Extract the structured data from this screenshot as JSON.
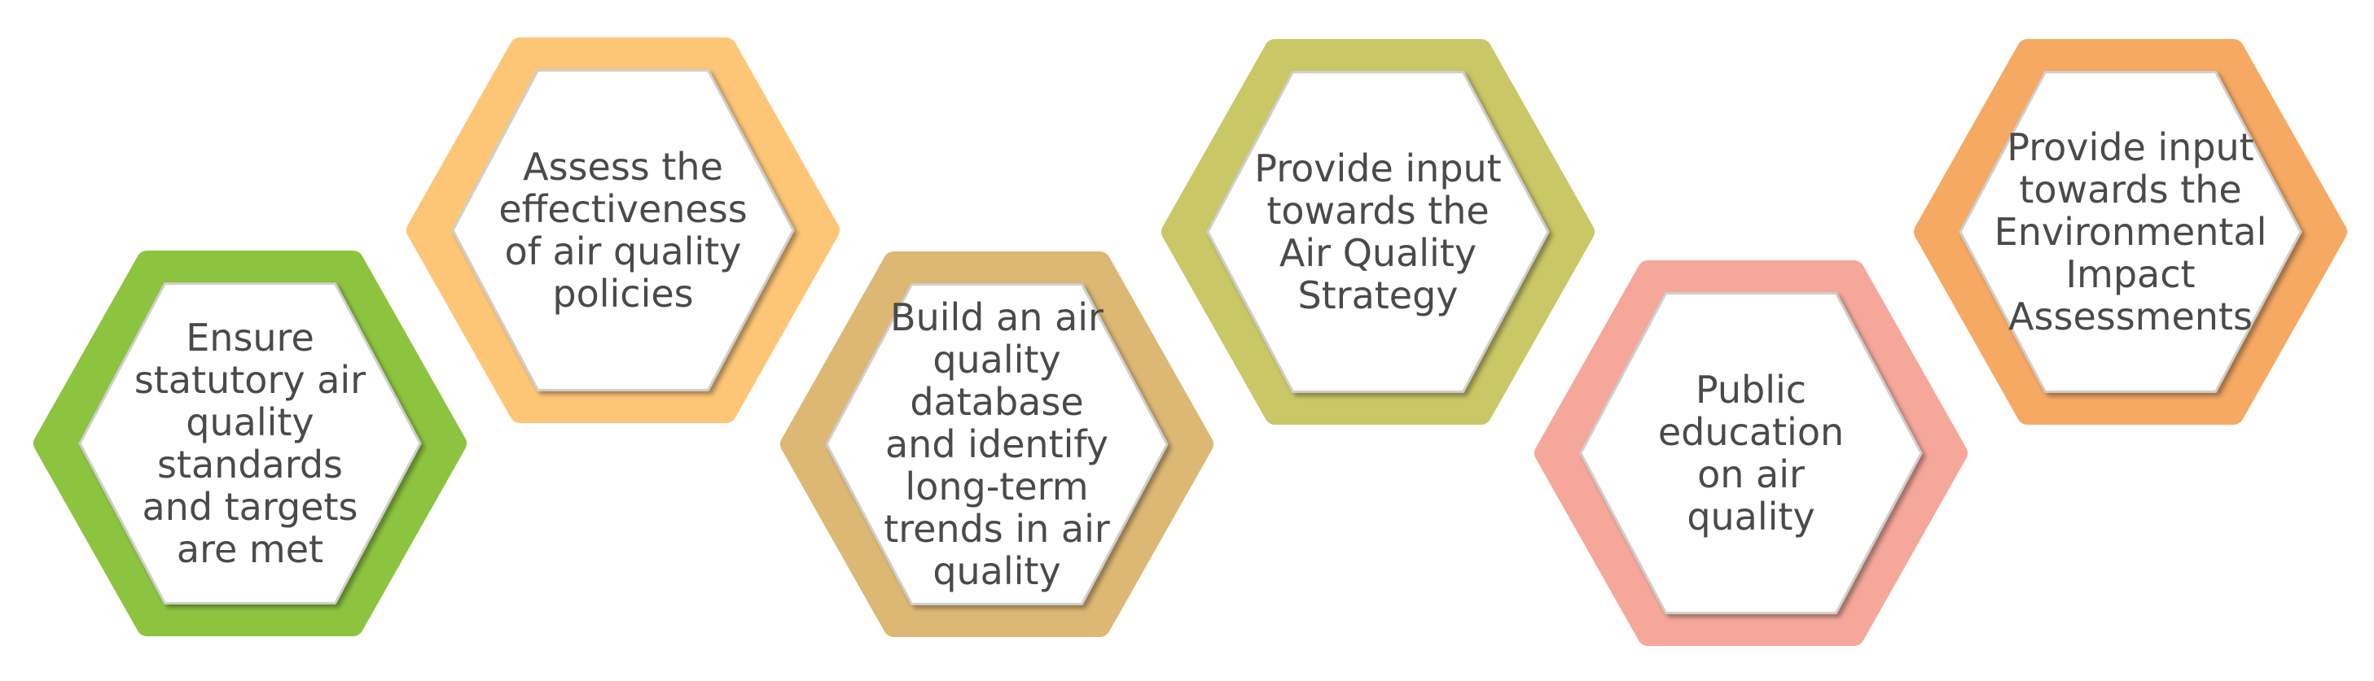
{
  "diagram": {
    "text_color": "#4a4a4a",
    "items": [
      {
        "label": "Ensure\nstatutory air\nquality\nstandards\nand targets\nare met",
        "color": "#8dc43f"
      },
      {
        "label": "Assess the\neffectiveness\nof air quality\npolicies",
        "color": "#fdc677"
      },
      {
        "label": "Build an air\nquality database\nand identify\nlong-term\ntrends in air\nquality",
        "color": "#ddb874"
      },
      {
        "label": "Provide input\ntowards the\nAir Quality\nStrategy",
        "color": "#cac766"
      },
      {
        "label": "Public\neducation\non air\nquality",
        "color": "#f5a89a"
      },
      {
        "label": "Provide input\ntowards the\nEnvironmental\nImpact\nAssessments",
        "color": "#f5a963"
      }
    ]
  }
}
